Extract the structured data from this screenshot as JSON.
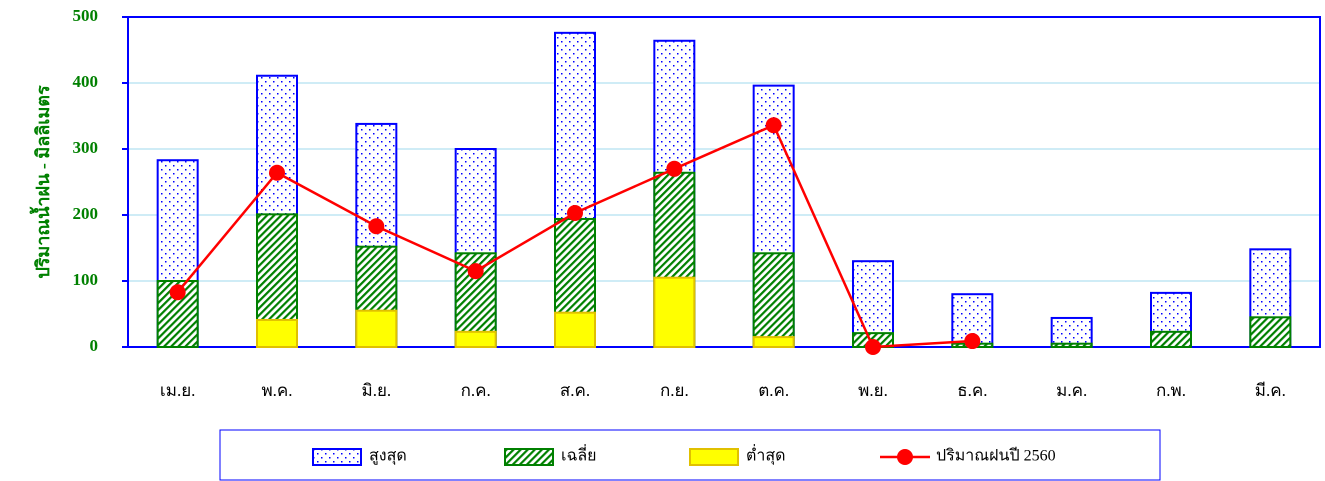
{
  "chart_data": {
    "type": "bar",
    "y_axis_label": "ปริมาณน้ำฝน - มิลลิเมตร",
    "categories": [
      "เม.ย.",
      "พ.ค.",
      "มิ.ย.",
      "ก.ค.",
      "ส.ค.",
      "ก.ย.",
      "ต.ค.",
      "พ.ย.",
      "ธ.ค.",
      "ม.ค.",
      "ก.พ.",
      "มี.ค."
    ],
    "series": [
      {
        "name": "สูงสุด",
        "type": "bar",
        "color": "#0000ff",
        "fill": "dots",
        "values": [
          283,
          411,
          338,
          300,
          476,
          464,
          396,
          130,
          80,
          44,
          82,
          148
        ]
      },
      {
        "name": "เฉลี่ย",
        "type": "bar",
        "color": "#008000",
        "fill": "hatch",
        "values": [
          100,
          201,
          152,
          142,
          194,
          264,
          142,
          21,
          5,
          5,
          23,
          45
        ]
      },
      {
        "name": "ต่ำสุด",
        "type": "bar",
        "color": "#ffff00",
        "fill": "solid",
        "values": [
          0,
          41,
          55,
          23,
          52,
          105,
          15,
          0,
          0,
          0,
          0,
          0
        ]
      },
      {
        "name": "ปริมาณฝนปี 2560",
        "type": "line",
        "color": "#ff0000",
        "values": [
          83,
          264,
          183,
          115,
          203,
          270,
          336,
          0,
          9,
          null,
          null,
          null
        ]
      }
    ],
    "ylim": [
      0,
      500
    ],
    "yticks": [
      0,
      100,
      200,
      300,
      400,
      500
    ],
    "grid": true,
    "legend": "bottom"
  }
}
